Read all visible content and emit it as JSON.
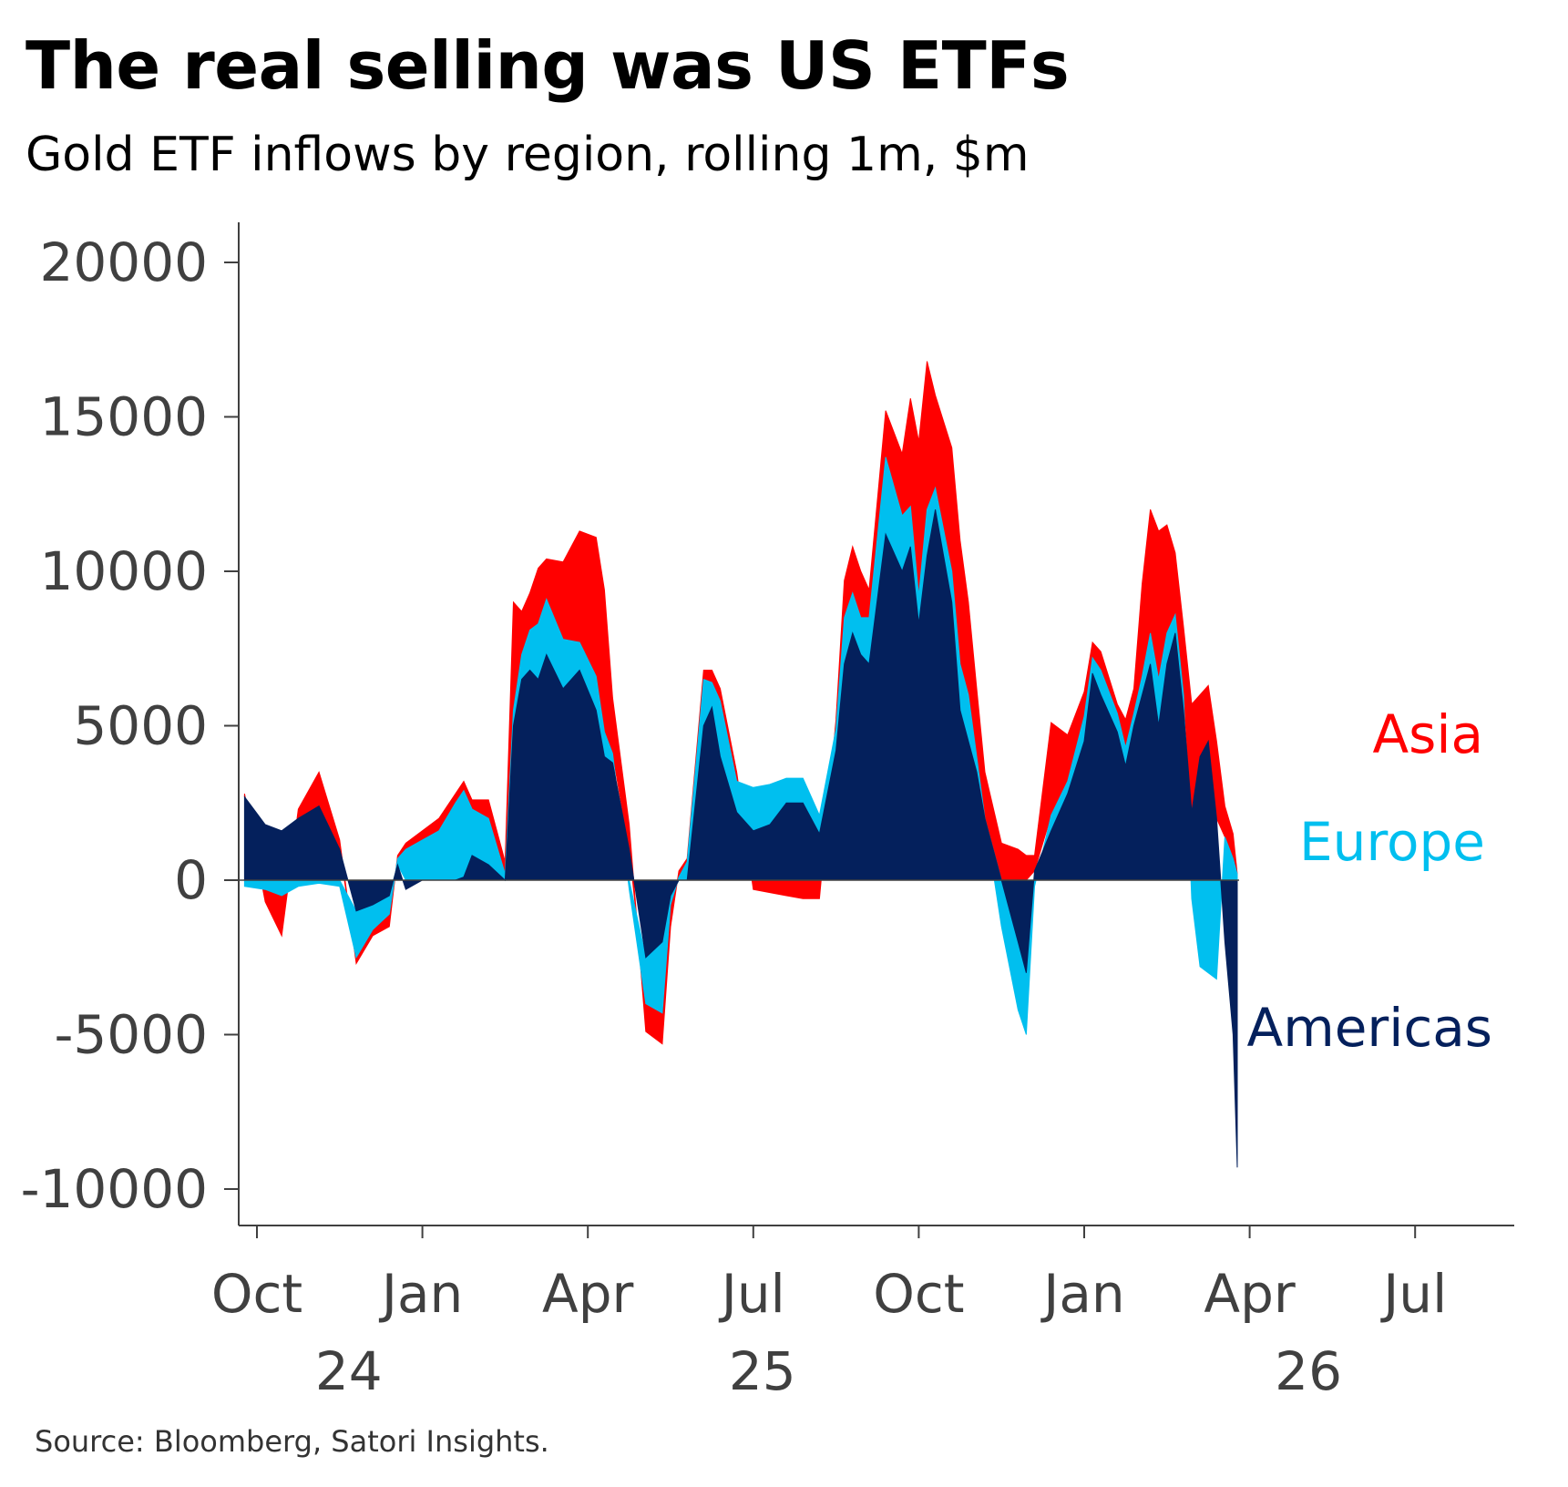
{
  "title": "The real selling was US ETFs",
  "subtitle": "Gold ETF inflows by region, rolling 1m, $m",
  "source": "Source: Bloomberg, Satori Insights.",
  "colors": {
    "asia": "#ff0000",
    "europe": "#00bfef",
    "americas": "#04205c",
    "axis": "#404040"
  },
  "chart_data": {
    "type": "area",
    "stacking": "stacked",
    "title": "The real selling was US ETFs",
    "subtitle": "Gold ETF inflows by region, rolling 1m, $m",
    "xlabel": "",
    "ylabel": "",
    "ylim": [
      -11000,
      21000
    ],
    "yticks": [
      20000,
      15000,
      10000,
      5000,
      0,
      -5000,
      -10000
    ],
    "ytick_labels": [
      "20000",
      "15000",
      "10000",
      "5000",
      "0",
      "-5000",
      "-10000"
    ],
    "xlim": [
      -0.15,
      15.6
    ],
    "xticks": [
      {
        "pos": 0,
        "label": "Oct"
      },
      {
        "pos": 2,
        "label": "Jan"
      },
      {
        "pos": 4,
        "label": "Apr"
      },
      {
        "pos": 6,
        "label": "Jul"
      },
      {
        "pos": 8,
        "label": "Oct"
      },
      {
        "pos": 10,
        "label": "Jan"
      },
      {
        "pos": 12,
        "label": "Apr"
      },
      {
        "pos": 14,
        "label": "Jul"
      }
    ],
    "year_labels": [
      {
        "pos": 1,
        "label": "24"
      },
      {
        "pos": 6,
        "label": "25"
      },
      {
        "pos": 12.6,
        "label": "26"
      }
    ],
    "x_units": "half-months since 2024-09-15 (Oct = 0, Jan = 2, Apr = 4, ...)",
    "x": [
      -0.15,
      0.1,
      0.3,
      0.5,
      0.75,
      1.0,
      1.2,
      1.4,
      1.6,
      1.7,
      1.8,
      2.0,
      2.2,
      2.4,
      2.5,
      2.6,
      2.8,
      3.0,
      3.1,
      3.2,
      3.3,
      3.4,
      3.5,
      3.7,
      3.9,
      4.1,
      4.2,
      4.3,
      4.5,
      4.7,
      4.9,
      5.0,
      5.1,
      5.2,
      5.4,
      5.5,
      5.6,
      5.8,
      6.0,
      6.2,
      6.4,
      6.6,
      6.8,
      7.0,
      7.1,
      7.2,
      7.3,
      7.4,
      7.6,
      7.8,
      7.9,
      8.0,
      8.1,
      8.2,
      8.4,
      8.5,
      8.6,
      8.7,
      8.8,
      9.0,
      9.2,
      9.3,
      9.4,
      9.6,
      9.8,
      10.0,
      10.1,
      10.2,
      10.4,
      10.5,
      10.6,
      10.7,
      10.8,
      10.9,
      11.0,
      11.1,
      11.2,
      11.3,
      11.4,
      11.5,
      11.6,
      11.7,
      11.8,
      11.85
    ],
    "series": [
      {
        "name": "Americas",
        "label": "Americas",
        "values": [
          2700,
          1800,
          1600,
          2000,
          2400,
          1000,
          -1000,
          -800,
          -500,
          500,
          -300,
          0,
          0,
          0,
          100,
          800,
          500,
          0,
          5000,
          6500,
          6800,
          6500,
          7300,
          6200,
          6800,
          5500,
          4000,
          3800,
          1000,
          -2500,
          -2000,
          -500,
          0,
          0,
          5000,
          5600,
          4000,
          2200,
          1600,
          1800,
          2500,
          2500,
          1500,
          4200,
          7000,
          8000,
          7300,
          7000,
          11200,
          10000,
          10800,
          8300,
          10500,
          12000,
          9000,
          5500,
          4500,
          3500,
          2000,
          0,
          -2000,
          -3000,
          300,
          1600,
          2800,
          4500,
          6700,
          6000,
          4800,
          3700,
          5000,
          6000,
          7000,
          5000,
          7000,
          8000,
          5500,
          2200,
          4000,
          4500,
          2000,
          -2000,
          -5000,
          -9300
        ]
      },
      {
        "name": "Europe",
        "label": "Europe",
        "values": [
          -200,
          -300,
          -500,
          -200,
          -100,
          -200,
          -1500,
          -800,
          -600,
          200,
          1000,
          1300,
          1600,
          2500,
          2800,
          1500,
          1500,
          200,
          500,
          800,
          1300,
          1800,
          1800,
          1600,
          900,
          1100,
          800,
          300,
          -300,
          -1500,
          -2300,
          -300,
          100,
          600,
          1500,
          800,
          1800,
          1000,
          1400,
          1300,
          800,
          800,
          600,
          700,
          1500,
          1300,
          1200,
          1500,
          2500,
          1800,
          1300,
          900,
          1500,
          700,
          1000,
          1500,
          1500,
          500,
          0,
          -1500,
          -2200,
          -2000,
          -200,
          500,
          400,
          800,
          500,
          800,
          600,
          600,
          400,
          600,
          1000,
          1500,
          1000,
          600,
          500,
          -600,
          -2800,
          -3000,
          -3200,
          1400,
          700,
          200
        ]
      },
      {
        "name": "Asia",
        "label": "Asia",
        "values": [
          100,
          -400,
          -1300,
          300,
          1100,
          300,
          -200,
          -200,
          -400,
          100,
          200,
          300,
          400,
          300,
          300,
          300,
          600,
          400,
          3500,
          1400,
          1200,
          1800,
          1300,
          2500,
          3600,
          4500,
          4600,
          1800,
          800,
          -900,
          -1000,
          -700,
          200,
          100,
          300,
          400,
          400,
          300,
          -300,
          -400,
          -500,
          -600,
          -600,
          300,
          1200,
          1500,
          1500,
          900,
          1500,
          2000,
          3500,
          5000,
          4800,
          3000,
          4000,
          4000,
          3000,
          2200,
          1500,
          1200,
          1000,
          800,
          500,
          3000,
          1500,
          800,
          500,
          600,
          300,
          900,
          800,
          3000,
          4000,
          4800,
          3500,
          2000,
          2200,
          3500,
          2000,
          1800,
          2500,
          1000,
          800,
          0
        ]
      }
    ],
    "legend": [
      {
        "label": "Asia",
        "placement": "right"
      },
      {
        "label": "Europe",
        "placement": "right"
      },
      {
        "label": "Americas",
        "placement": "right"
      }
    ],
    "grid": false
  }
}
